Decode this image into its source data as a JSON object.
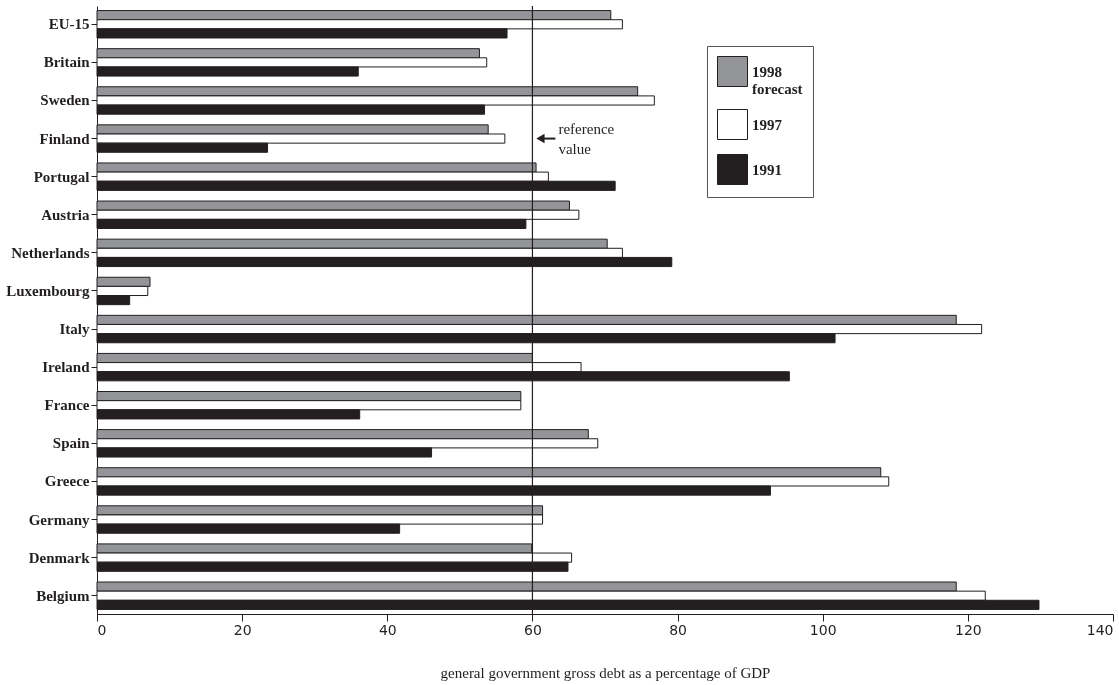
{
  "chart_data": {
    "type": "bar",
    "orientation": "horizontal",
    "xlabel": "general government gross debt as a percentage of GDP",
    "categories": [
      "EU-15",
      "Britain",
      "Sweden",
      "Finland",
      "Portugal",
      "Austria",
      "Netherlands",
      "Luxembourg",
      "Italy",
      "Ireland",
      "France",
      "Spain",
      "Greece",
      "Germany",
      "Denmark",
      "Belgium"
    ],
    "series": [
      {
        "name": "1998 forecast",
        "color": "#939598",
        "values": [
          70.8,
          52.7,
          74.5,
          53.9,
          60.5,
          65.1,
          70.3,
          7.3,
          118.4,
          60.0,
          58.4,
          67.7,
          108.0,
          61.4,
          59.9,
          118.4
        ]
      },
      {
        "name": "1997",
        "color": "#ffffff",
        "values": [
          72.4,
          53.7,
          76.8,
          56.2,
          62.2,
          66.4,
          72.4,
          7.0,
          121.9,
          66.7,
          58.4,
          69.0,
          109.1,
          61.4,
          65.4,
          122.4
        ]
      },
      {
        "name": "1991",
        "color": "#231f20",
        "values": [
          56.5,
          36.0,
          53.4,
          23.5,
          71.4,
          59.1,
          79.2,
          4.5,
          101.7,
          95.4,
          36.2,
          46.1,
          92.8,
          41.7,
          64.9,
          129.8
        ]
      }
    ],
    "xlim": [
      0,
      140
    ],
    "xticks": [
      0,
      20,
      40,
      60,
      80,
      100,
      120,
      140
    ],
    "ref_lines": [
      {
        "axis": "x",
        "value": 60,
        "label": "reference value",
        "color": "#231f20"
      }
    ],
    "legend": "top right",
    "grid": false
  }
}
